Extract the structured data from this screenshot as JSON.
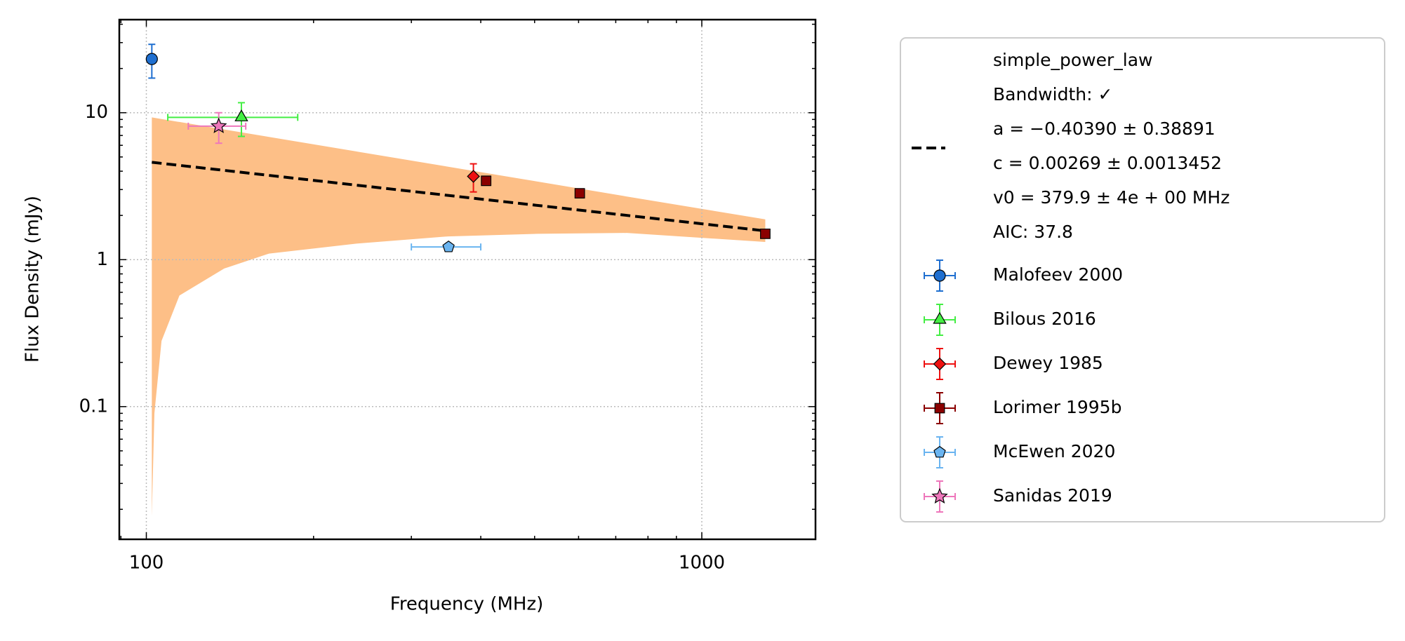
{
  "chart_data": {
    "type": "scatter",
    "xlabel": "Frequency (MHz)",
    "ylabel": "Flux Density (mJy)",
    "xscale": "log",
    "yscale": "log",
    "xlim": [
      89.4,
      1602
    ],
    "ylim": [
      0.0125,
      43
    ],
    "xticks": [
      100,
      1000
    ],
    "xminorticks": [
      90,
      200,
      300,
      400,
      500,
      600,
      700,
      800,
      900
    ],
    "yticks": [
      0.1,
      1,
      10
    ],
    "yminorticks": [
      0.02,
      0.03,
      0.04,
      0.05,
      0.06,
      0.07,
      0.08,
      0.09,
      0.2,
      0.3,
      0.4,
      0.5,
      0.6,
      0.7,
      0.8,
      0.9,
      2,
      3,
      4,
      5,
      6,
      7,
      8,
      9,
      20,
      30,
      40
    ],
    "grid": true,
    "fit": {
      "label_lines": [
        "simple_power_law",
        "Bandwidth: ✓",
        "a = −0.40390 ± 0.38891",
        "c = 0.00269 ± 0.0013452",
        "v0 = 379.9 ± 4e + 00 MHz",
        "AIC: 37.8"
      ],
      "color": "#000000",
      "x": [
        102.3,
        1301
      ],
      "y": [
        4.6,
        1.57
      ],
      "band_color": "#fdbf87",
      "band_x": [
        102.3,
        103.4,
        106.5,
        114.7,
        138.1,
        166.3,
        241,
        349.6,
        506,
        733,
        1301
      ],
      "band_lower": [
        0.018,
        0.09,
        0.28,
        0.57,
        0.87,
        1.1,
        1.29,
        1.44,
        1.5,
        1.52,
        1.32
      ],
      "band_upper": [
        9.3,
        9.23,
        9.06,
        8.65,
        7.69,
        6.84,
        5.42,
        4.29,
        3.4,
        2.69,
        1.88
      ]
    },
    "series": [
      {
        "name": "Malofeev 2000",
        "color": "#1f6fd0",
        "marker": "circle",
        "x": [
          102.3
        ],
        "y": [
          23.2
        ],
        "xerr": [
          null
        ],
        "yerr": [
          6
        ]
      },
      {
        "name": "Bilous 2016",
        "color": "#44ee44",
        "marker": "triangle",
        "x": [
          148.3
        ],
        "y": [
          9.3
        ],
        "xerr": [
          39
        ],
        "yerr": [
          2.4
        ]
      },
      {
        "name": "Dewey 1985",
        "color": "#ee1111",
        "marker": "diamond",
        "x": [
          388
        ],
        "y": [
          3.69
        ],
        "xerr": [
          null
        ],
        "yerr": [
          0.8
        ]
      },
      {
        "name": "Lorimer 1995b",
        "color": "#8b0000",
        "marker": "square",
        "x": [
          409,
          603,
          1301
        ],
        "y": [
          3.44,
          2.83,
          1.5
        ],
        "xerr": [
          null,
          null,
          null
        ],
        "yerr": [
          null,
          null,
          null
        ]
      },
      {
        "name": "McEwen 2020",
        "color": "#6ab4f0",
        "marker": "pentagon",
        "x": [
          350
        ],
        "y": [
          1.22
        ],
        "xerr": [
          50
        ],
        "yerr": [
          null
        ]
      },
      {
        "name": "Sanidas 2019",
        "color": "#ee77bb",
        "marker": "star",
        "x": [
          135
        ],
        "y": [
          8.1
        ],
        "xerr": [
          16
        ],
        "yerr": [
          1.9
        ]
      }
    ]
  }
}
